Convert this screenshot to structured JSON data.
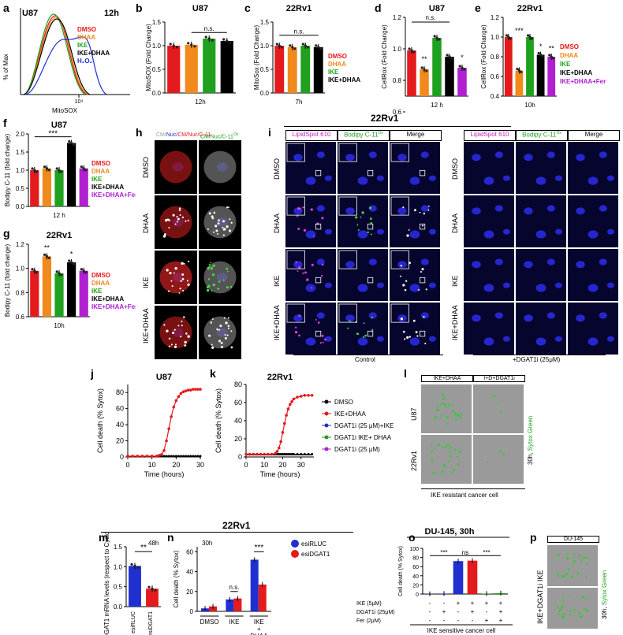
{
  "panel_letters": {
    "a": "a",
    "b": "b",
    "c": "c",
    "d": "d",
    "e": "e",
    "f": "f",
    "g": "g",
    "h": "h",
    "i": "i",
    "j": "j",
    "k": "k",
    "l": "l",
    "m": "m",
    "n": "n",
    "o": "o",
    "p": "p"
  },
  "colors": {
    "dmso": "#e41a1c",
    "dhaa": "#f08a1c",
    "ike": "#1fa01f",
    "ike_dhaa": "#000000",
    "ike_dhaa_fer": "#b020d0",
    "h2o2": "#1f2fd0",
    "blue": "#1f2fd0",
    "red": "#e41a1c"
  },
  "panel_a": {
    "title": "U87",
    "time": "12h",
    "ylabel": "% of Max",
    "xlabel": "MitoSOX",
    "xtick": "10⁴",
    "legend": [
      "DMSO",
      "DHAA",
      "IKE",
      "IKE+DHAA",
      "H₂O₂"
    ]
  },
  "panel_b": {
    "title": "U87",
    "ylabel": "MitoSOX (Fold Change)",
    "xlabel": "12h",
    "sig": "n.s.",
    "yticks": [
      "0.0",
      "0.5",
      "1.0",
      "1.5"
    ],
    "chart_data": {
      "type": "bar",
      "categories": [
        "DMSO",
        "DHAA",
        "IKE",
        "IKE+DHAA"
      ],
      "values": [
        1.0,
        1.02,
        1.15,
        1.1
      ],
      "ylim": [
        0,
        1.5
      ]
    }
  },
  "panel_c": {
    "title": "22Rv1",
    "ylabel": "MitoSox (Fold Change)",
    "xlabel": "7h",
    "sig": "n.s.",
    "yticks": [
      "0.0",
      "0.5",
      "1.0",
      "1.5"
    ],
    "legend": [
      "DMSO",
      "DHAA",
      "IKE",
      "IKE+DHAA"
    ],
    "chart_data": {
      "type": "bar",
      "categories": [
        "DMSO",
        "DHAA",
        "IKE",
        "IKE+DHAA"
      ],
      "values": [
        1.0,
        0.97,
        1.0,
        0.97
      ],
      "ylim": [
        0,
        1.5
      ]
    }
  },
  "panel_d": {
    "title": "U87",
    "ylabel": "CellRox (Fold Change)",
    "xlabel": "12 h",
    "sig": "n.s.",
    "stars": [
      "**",
      "*"
    ],
    "yticks": [
      "0.6",
      "0.8",
      "1.0",
      "1.2"
    ],
    "chart_data": {
      "type": "bar",
      "categories": [
        "DMSO",
        "DHAA",
        "IKE",
        "IKE+DHAA",
        "IKE+DHAA+Fer"
      ],
      "values": [
        0.99,
        0.87,
        1.07,
        0.95,
        0.88
      ],
      "ylim": [
        0.7,
        1.2
      ]
    }
  },
  "panel_e": {
    "title": "22Rv1",
    "ylabel": "CellRox (Fold Change)",
    "xlabel": "10h",
    "stars": [
      "***",
      "*",
      "**"
    ],
    "yticks": [
      "0.4",
      "0.6",
      "0.8",
      "1.0",
      "1.2"
    ],
    "legend": [
      "DMSO",
      "DHAA",
      "IKE",
      "IKE+DHAA",
      "IKE+DHAA+Fer"
    ],
    "chart_data": {
      "type": "bar",
      "categories": [
        "DMSO",
        "DHAA",
        "IKE",
        "IKE+DHAA",
        "IKE+DHAA+Fer"
      ],
      "values": [
        1.0,
        0.66,
        1.0,
        0.82,
        0.8
      ],
      "ylim": [
        0.4,
        1.2
      ]
    }
  },
  "panel_f": {
    "title": "U87",
    "ylabel": "Bodipy C-11 (fold change)",
    "xlabel": "12 h",
    "sig": "***",
    "yticks": [
      "0.0",
      "0.5",
      "1.0",
      "1.5",
      "2.0"
    ],
    "legend": [
      "DMSO",
      "DHAA",
      "IKE",
      "IKE+DHAA",
      "IKE+DHAA+Fer"
    ],
    "chart_data": {
      "type": "bar",
      "categories": [
        "DMSO",
        "DHAA",
        "IKE",
        "IKE+DHAA",
        "IKE+DHAA+Fer"
      ],
      "values": [
        1.0,
        1.05,
        1.0,
        1.75,
        1.05
      ],
      "ylim": [
        0,
        2.0
      ]
    }
  },
  "panel_g": {
    "title": "22Rv1",
    "ylabel": "Bodipy C-11 (fold change)",
    "xlabel": "10h",
    "stars": [
      "**",
      "*"
    ],
    "yticks": [
      "0.6",
      "0.8",
      "1.0",
      "1.2"
    ],
    "legend": [
      "DMSO",
      "DHAA",
      "IKE",
      "IKE+DHAA",
      "IKE+DHAA+Fer"
    ],
    "chart_data": {
      "type": "bar",
      "categories": [
        "DMSO",
        "DHAA",
        "IKE",
        "IKE+DHAA",
        "IKE+DHAA+Fer"
      ],
      "values": [
        0.98,
        1.1,
        0.96,
        1.05,
        0.98
      ],
      "ylim": [
        0.6,
        1.2
      ]
    }
  },
  "panel_h": {
    "col1": "CM/Nuc/C-11",
    "col1_sup": "Red",
    "col2": "CM/Nuc/C-11",
    "col2_sup": "Ox",
    "rows": [
      "DMSO",
      "DHAA",
      "IKE",
      "IKE+DHAA"
    ]
  },
  "panel_i": {
    "header": "22Rv1",
    "cols": [
      "LipidSpot 610",
      "Bodipy C-11",
      "Merge"
    ],
    "col2_sup": "Ox",
    "rows": [
      "DMSO",
      "DHAA",
      "IKE",
      "IKE+DHAA"
    ],
    "control_label": "Control",
    "dgat_label": "+DGAT1i (25μM)"
  },
  "panel_j": {
    "title": "U87",
    "ylabel": "Cell death (% Sytox)",
    "xlabel": "Time (hours)",
    "xticks": [
      "0",
      "10",
      "20",
      "30"
    ],
    "yticks": [
      "0",
      "20",
      "40",
      "60",
      "80"
    ],
    "chart_data": {
      "type": "line",
      "x": [
        0,
        2,
        4,
        6,
        8,
        10,
        12,
        13,
        14,
        15,
        16,
        17,
        18,
        19,
        20,
        21,
        22,
        23,
        24,
        25,
        26,
        27,
        28,
        29,
        30
      ],
      "series": [
        {
          "name": "IKE+DHAA",
          "values": [
            1,
            1,
            1,
            1,
            1,
            1,
            1,
            2,
            3,
            8,
            20,
            35,
            50,
            62,
            70,
            75,
            79,
            81,
            82,
            83,
            83,
            84,
            84,
            84,
            84
          ]
        },
        {
          "name": "DMSO",
          "values": [
            1,
            1,
            1,
            1,
            1,
            1,
            1,
            1,
            1,
            1,
            1,
            1,
            1,
            1,
            1,
            1,
            1,
            1,
            1,
            1,
            1,
            1,
            1,
            1,
            1
          ]
        }
      ],
      "ylim": [
        0,
        90
      ],
      "xlim": [
        0,
        30
      ]
    }
  },
  "panel_k": {
    "title": "22Rv1",
    "ylabel": "Cell death (% Sytox)",
    "xlabel": "Time (hours)",
    "xticks": [
      "0",
      "10",
      "20",
      "30"
    ],
    "yticks": [
      "0",
      "20",
      "40",
      "60",
      "80"
    ],
    "legend": [
      "DMSO",
      "IKE+DHAA",
      "DGAT1i (25 μM)+IKE",
      "DGAT1i IKE+ DHAA",
      "DGAT1i (25 μM)"
    ],
    "chart_data": {
      "type": "line",
      "x": [
        0,
        2,
        4,
        6,
        8,
        10,
        12,
        14,
        16,
        17,
        18,
        19,
        20,
        21,
        22,
        23,
        24,
        25,
        26,
        28,
        30,
        32,
        34,
        36
      ],
      "series": [
        {
          "name": "IKE+DHAA",
          "values": [
            3,
            3,
            3,
            3,
            3,
            3,
            3,
            3,
            4,
            6,
            10,
            17,
            27,
            37,
            46,
            53,
            58,
            61,
            64,
            66,
            67,
            68,
            68,
            68
          ]
        },
        {
          "name": "DMSO",
          "values": [
            3,
            3,
            3,
            3,
            3,
            3,
            3,
            3,
            3,
            3,
            3,
            3,
            3,
            3,
            3,
            3,
            3,
            3,
            3,
            3,
            3,
            3,
            3,
            3
          ]
        }
      ],
      "ylim": [
        0,
        80
      ],
      "xlim": [
        0,
        37
      ]
    }
  },
  "panel_l": {
    "cols": [
      "IKE+DHAA",
      "I+D+DGAT1i"
    ],
    "rows": [
      "U87",
      "22Rv1"
    ],
    "side": "30h, ",
    "side_green": "Sytox Green",
    "caption": "IKE resistant cancer cell"
  },
  "section_22rv1": "22Rv1",
  "panel_m": {
    "ylabel": "DGAT1 mRNA levels (respect to Cyclophilin)",
    "time": "48h",
    "sig": "**",
    "xticks": [
      "esiRLUC",
      "esiDGAT1"
    ],
    "yticks": [
      "0.0",
      "0.5",
      "1.0",
      "1.5"
    ],
    "chart_data": {
      "type": "bar",
      "categories": [
        "esiRLUC",
        "esiDGAT1"
      ],
      "values": [
        1.02,
        0.45
      ],
      "ylim": [
        0,
        1.5
      ]
    }
  },
  "panel_n": {
    "ylabel": "Cell death (% Sytox)",
    "time": "30h",
    "sig_ns": "n.s.",
    "sig": "***",
    "xticks": [
      "DMSO",
      "IKE",
      "IKE + DHAA"
    ],
    "yticks": [
      "0",
      "20",
      "40",
      "60"
    ],
    "legend": [
      "esiRLUC",
      "esiDGAT1"
    ],
    "chart_data": {
      "type": "bar",
      "categories": [
        "DMSO",
        "IKE",
        "IKE+DHAA"
      ],
      "series": [
        {
          "name": "esiRLUC",
          "values": [
            3,
            12,
            52
          ]
        },
        {
          "name": "esiDGAT1",
          "values": [
            5,
            13,
            27
          ]
        }
      ],
      "ylim": [
        0,
        65
      ]
    }
  },
  "panel_o": {
    "title": "DU-145, 30h",
    "ylabel": "Cell death (% Sytox)",
    "yticks": [
      "0",
      "20",
      "40",
      "60",
      "80",
      "100"
    ],
    "sig": [
      "***",
      "ns",
      "***"
    ],
    "rows": [
      {
        "label": "IKE (5μM)",
        "vals": [
          "-",
          "-",
          "+",
          "+",
          "+",
          "+"
        ]
      },
      {
        "label": "DGAT1i (25μM)",
        "vals": [
          "-",
          "+",
          "-",
          "+",
          "-",
          "+"
        ]
      },
      {
        "label": "Fer (2μM)",
        "vals": [
          "-",
          "-",
          "-",
          "-",
          "+",
          "+"
        ]
      }
    ],
    "caption": "IKE sensitive cancer cell",
    "chart_data": {
      "type": "bar",
      "categories": [
        "1",
        "2",
        "3",
        "4",
        "5",
        "6"
      ],
      "values": [
        0.5,
        1,
        72,
        73,
        1,
        2
      ],
      "ylim": [
        0,
        100
      ]
    }
  },
  "panel_p": {
    "header": "DU-145",
    "rows": [
      "IKE",
      "IKE+DGAT1i"
    ],
    "side": "30h, ",
    "side_green": "Sytox Green"
  }
}
